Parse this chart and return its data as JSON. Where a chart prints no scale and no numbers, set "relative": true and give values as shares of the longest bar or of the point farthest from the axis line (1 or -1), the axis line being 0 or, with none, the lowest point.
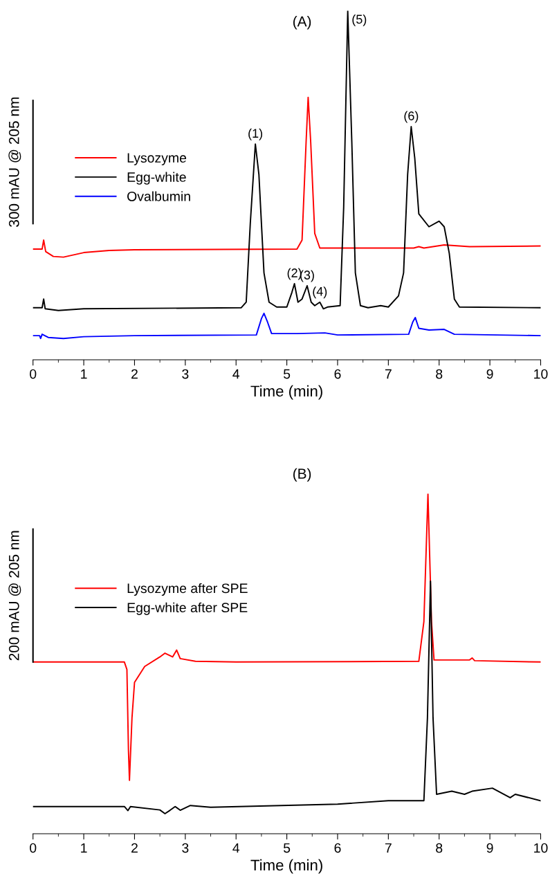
{
  "chart_data": [
    {
      "type": "line",
      "title": "(A)",
      "xlabel": "Time (min)",
      "ylabel": "300 mAU @ 205 nm",
      "relative": true,
      "xlim": [
        0,
        10
      ],
      "xticks": [
        0,
        1,
        2,
        3,
        4,
        5,
        6,
        7,
        8,
        9,
        10
      ],
      "tick_labels": "x",
      "grid": false,
      "legend": "left",
      "marker": "none",
      "line_style": "solid",
      "series": [
        {
          "name": "Lysozyme",
          "color": "#ff0000",
          "x": [
            0,
            0.18,
            0.21,
            0.25,
            0.4,
            0.6,
            1.0,
            1.5,
            2,
            5.2,
            5.3,
            5.38,
            5.42,
            5.47,
            5.55,
            5.65,
            7.5,
            7.6,
            7.7,
            8.1,
            8.6,
            10
          ],
          "values": [
            0.317,
            0.317,
            0.343,
            0.31,
            0.296,
            0.294,
            0.307,
            0.313,
            0.315,
            0.317,
            0.343,
            0.625,
            0.752,
            0.625,
            0.362,
            0.32,
            0.32,
            0.324,
            0.32,
            0.329,
            0.324,
            0.326
          ]
        },
        {
          "name": "Egg-white",
          "color": "#000000",
          "x": [
            0,
            0.18,
            0.21,
            0.24,
            0.5,
            1,
            4.1,
            4.2,
            4.28,
            4.38,
            4.45,
            4.55,
            4.65,
            4.8,
            5.0,
            5.1,
            5.15,
            5.22,
            5.3,
            5.4,
            5.48,
            5.55,
            5.65,
            5.72,
            5.8,
            6.05,
            6.12,
            6.2,
            6.28,
            6.35,
            6.45,
            6.6,
            6.85,
            7.0,
            7.2,
            7.3,
            7.38,
            7.45,
            7.52,
            7.6,
            7.8,
            8.0,
            8.1,
            8.2,
            8.3,
            8.4,
            10
          ],
          "values": [
            0.149,
            0.149,
            0.174,
            0.146,
            0.141,
            0.146,
            0.149,
            0.165,
            0.39,
            0.618,
            0.531,
            0.249,
            0.165,
            0.151,
            0.151,
            0.193,
            0.218,
            0.165,
            0.174,
            0.212,
            0.165,
            0.155,
            0.165,
            0.146,
            0.151,
            0.155,
            0.437,
            1.0,
            0.625,
            0.249,
            0.155,
            0.149,
            0.155,
            0.151,
            0.183,
            0.249,
            0.531,
            0.668,
            0.578,
            0.418,
            0.381,
            0.397,
            0.381,
            0.305,
            0.174,
            0.151,
            0.149
          ]
        },
        {
          "name": "Ovalbumin",
          "color": "#0000ff",
          "x": [
            0,
            0.13,
            0.15,
            0.18,
            0.3,
            0.6,
            1,
            2,
            4.4,
            4.5,
            4.55,
            4.62,
            4.7,
            5.2,
            5.75,
            6,
            7.4,
            7.48,
            7.53,
            7.6,
            7.8,
            8.1,
            8.3,
            10
          ],
          "values": [
            0.069,
            0.069,
            0.061,
            0.073,
            0.064,
            0.061,
            0.066,
            0.069,
            0.071,
            0.118,
            0.133,
            0.108,
            0.075,
            0.075,
            0.077,
            0.071,
            0.073,
            0.108,
            0.121,
            0.09,
            0.085,
            0.087,
            0.073,
            0.069
          ]
        }
      ],
      "annotations": [
        {
          "text": "(1)",
          "x": 4.38,
          "y": 0.618
        },
        {
          "text": "(2)",
          "x": 5.15,
          "y": 0.218
        },
        {
          "text": "(3)",
          "x": 5.4,
          "y": 0.212
        },
        {
          "text": "(4)",
          "x": 5.65,
          "y": 0.165
        },
        {
          "text": "(5)",
          "x": 6.2,
          "y": 1.0
        },
        {
          "text": "(6)",
          "x": 7.45,
          "y": 0.668
        }
      ]
    },
    {
      "type": "line",
      "title": "(B)",
      "xlabel": "Time (min)",
      "ylabel": "200 mAU @ 205 nm",
      "relative": true,
      "xlim": [
        0,
        10
      ],
      "xticks": [
        0,
        1,
        2,
        3,
        4,
        5,
        6,
        7,
        8,
        9,
        10
      ],
      "tick_labels": "x",
      "grid": false,
      "legend": "left",
      "marker": "none",
      "line_style": "solid",
      "series": [
        {
          "name": "Lysozyme after SPE",
          "color": "#ff0000",
          "x": [
            0,
            1.8,
            1.85,
            1.88,
            1.9,
            1.95,
            2.0,
            2.2,
            2.5,
            2.6,
            2.75,
            2.83,
            2.9,
            3.2,
            4,
            7.6,
            7.7,
            7.78,
            7.85,
            7.9,
            8.6,
            8.65,
            8.7,
            10
          ],
          "values": [
            0.505,
            0.505,
            0.483,
            0.247,
            0.157,
            0.341,
            0.445,
            0.492,
            0.52,
            0.531,
            0.52,
            0.54,
            0.515,
            0.507,
            0.505,
            0.507,
            0.624,
            1.0,
            0.624,
            0.511,
            0.511,
            0.517,
            0.509,
            0.505
          ]
        },
        {
          "name": "Egg-white after SPE",
          "color": "#000000",
          "x": [
            0,
            1.8,
            1.87,
            1.92,
            2.5,
            2.6,
            2.7,
            2.8,
            2.9,
            3.1,
            3.5,
            6,
            7,
            7.7,
            7.77,
            7.83,
            7.88,
            7.95,
            8.25,
            8.5,
            8.65,
            9.05,
            9.4,
            9.5,
            10
          ],
          "values": [
            0.08,
            0.08,
            0.068,
            0.08,
            0.07,
            0.059,
            0.069,
            0.08,
            0.069,
            0.083,
            0.078,
            0.087,
            0.097,
            0.097,
            0.341,
            0.743,
            0.341,
            0.116,
            0.125,
            0.116,
            0.125,
            0.134,
            0.106,
            0.116,
            0.097
          ]
        }
      ]
    }
  ]
}
